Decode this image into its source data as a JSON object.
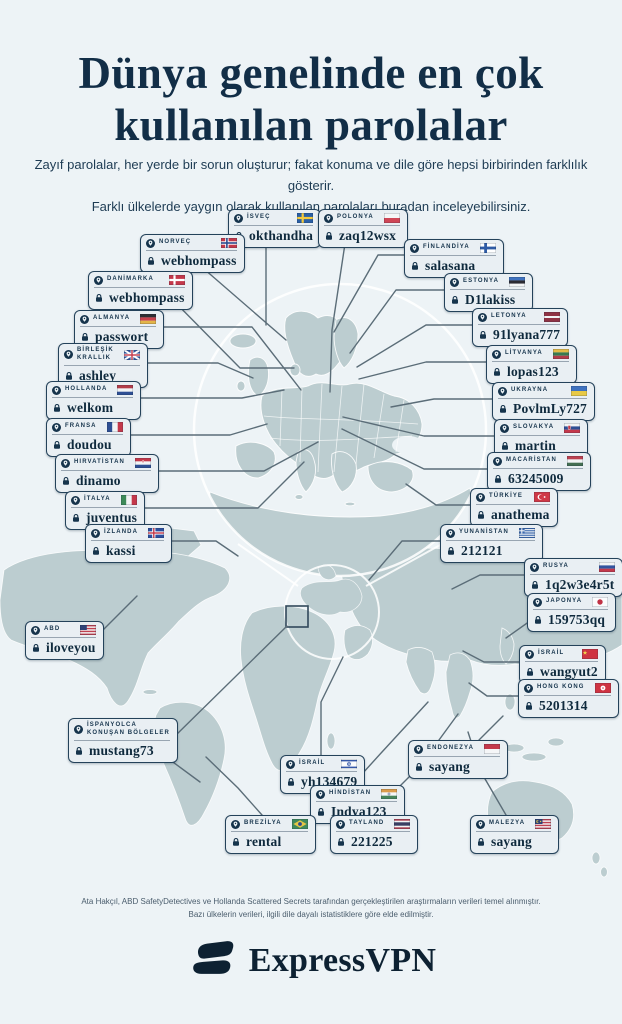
{
  "page": {
    "title_line1": "Dünya genelinde en çok",
    "title_line2": "kullanılan parolalar",
    "subtitle_line1": "Zayıf parolalar, her yerde bir sorun oluşturur; fakat konuma ve dile göre hepsi birbirinden farklılık gösterir.",
    "subtitle_line2": "Farklı ülkelerde yaygın olarak kullanılan parolaları buradan inceleyebilirsiniz.",
    "footnote_line1": "Ata Hakçıl, ABD SafetyDetectives ve Hollanda Scattered Secrets tarafından gerçekleştirilen araştırmaların verileri temel alınmıştır.",
    "footnote_line2": "Bazı ülkelerin verileri, ilgili dile dayalı istatistiklere göre elde edilmiştir.",
    "brand_name": "ExpressVPN"
  },
  "colors": {
    "background": "#edf3f6",
    "navy": "#122e47",
    "land": "#bccdd0",
    "connector": "#5b6d78",
    "box_background": "#e9eff3"
  },
  "callouts": [
    {
      "id": "sweden",
      "country": "İSVEÇ",
      "password": "okthandha",
      "flag": "se"
    },
    {
      "id": "poland",
      "country": "POLONYA",
      "password": "zaq12wsx",
      "flag": "pl"
    },
    {
      "id": "norway",
      "country": "NORVEÇ",
      "password": "webhompass",
      "flag": "no"
    },
    {
      "id": "finland",
      "country": "FİNLANDİYA",
      "password": "salasana",
      "flag": "fi"
    },
    {
      "id": "denmark",
      "country": "DANİMARKA",
      "password": "webhompass",
      "flag": "dk"
    },
    {
      "id": "estonia",
      "country": "ESTONYA",
      "password": "D1lakiss",
      "flag": "ee"
    },
    {
      "id": "germany",
      "country": "ALMANYA",
      "password": "passwort",
      "flag": "de"
    },
    {
      "id": "latvia",
      "country": "LETONYA",
      "password": "91lyana777",
      "flag": "lv"
    },
    {
      "id": "uk",
      "country": "BİRLEŞİK\nKRALLIK",
      "password": "ashley",
      "flag": "gb"
    },
    {
      "id": "lithuania",
      "country": "LİTVANYA",
      "password": "lopas123",
      "flag": "lt"
    },
    {
      "id": "netherlands",
      "country": "HOLLANDA",
      "password": "welkom",
      "flag": "nl"
    },
    {
      "id": "ukraine",
      "country": "UKRAYNA",
      "password": "PovlmLy727",
      "flag": "ua"
    },
    {
      "id": "france",
      "country": "FRANSA",
      "password": "doudou",
      "flag": "fr"
    },
    {
      "id": "slovakia",
      "country": "SLOVAKYA",
      "password": "martin",
      "flag": "sk"
    },
    {
      "id": "croatia",
      "country": "HIRVATİSTAN",
      "password": "dinamo",
      "flag": "hr"
    },
    {
      "id": "hungary",
      "country": "MACARİSTAN",
      "password": "63245009",
      "flag": "hu"
    },
    {
      "id": "italy",
      "country": "İTALYA",
      "password": "juventus",
      "flag": "it"
    },
    {
      "id": "turkey",
      "country": "TÜRKİYE",
      "password": "anathema",
      "flag": "tr"
    },
    {
      "id": "iceland",
      "country": "İZLANDA",
      "password": "kassi",
      "flag": "is"
    },
    {
      "id": "greece",
      "country": "YUNANİSTAN",
      "password": "212121",
      "flag": "gr"
    },
    {
      "id": "russia",
      "country": "RUSYA",
      "password": "1q2w3e4r5t",
      "flag": "ru"
    },
    {
      "id": "japan",
      "country": "JAPONYA",
      "password": "159753qq",
      "flag": "jp"
    },
    {
      "id": "usa",
      "country": "ABD",
      "password": "iloveyou",
      "flag": "us"
    },
    {
      "id": "israel_cn",
      "country": "İSRAİL",
      "password": "wangyut2",
      "flag": "cn"
    },
    {
      "id": "hongkong",
      "country": "HONG KONG",
      "password": "5201314",
      "flag": "hk"
    },
    {
      "id": "spanish",
      "country": "İSPANYOLCA\nKONUŞAN BÖLGELER",
      "password": "mustang73",
      "flag": "none"
    },
    {
      "id": "indonesia",
      "country": "ENDONEZYA",
      "password": "sayang",
      "flag": "id"
    },
    {
      "id": "israel",
      "country": "İSRAİL",
      "password": "yh134679",
      "flag": "il"
    },
    {
      "id": "india",
      "country": "HİNDİSTAN",
      "password": "Indya123",
      "flag": "in"
    },
    {
      "id": "brazil",
      "country": "BREZİLYA",
      "password": "rental",
      "flag": "br"
    },
    {
      "id": "thailand",
      "country": "TAYLAND",
      "password": "221225",
      "flag": "th"
    },
    {
      "id": "malaysia",
      "country": "MALEZYA",
      "password": "sayang",
      "flag": "my"
    }
  ]
}
